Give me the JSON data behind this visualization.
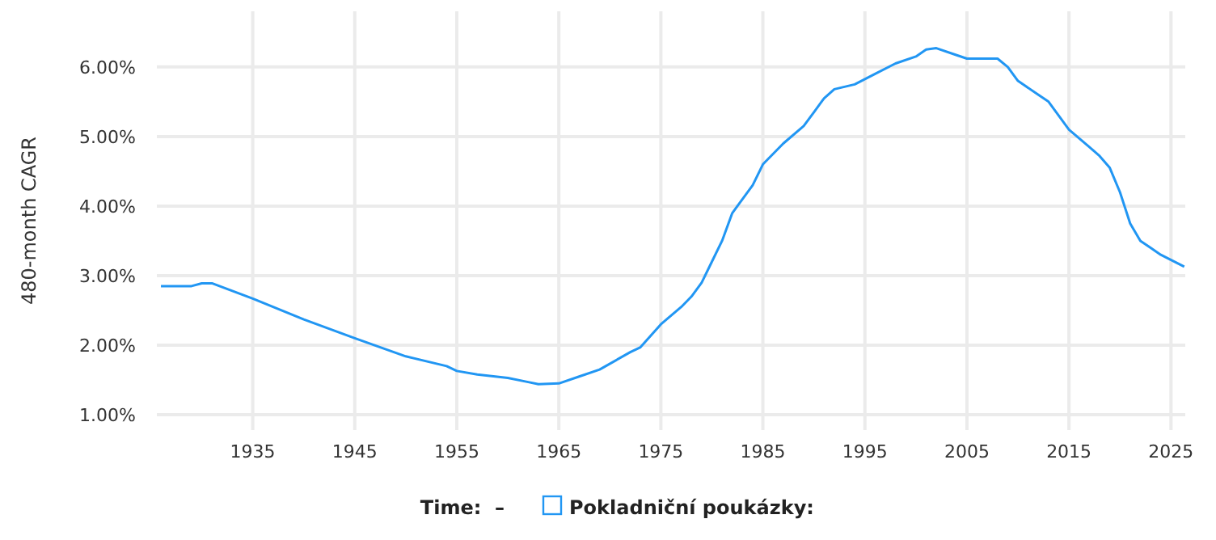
{
  "chart_data": {
    "type": "line",
    "ylabel": "480-month CAGR",
    "annotations": [
      "Time:  –"
    ],
    "xlim": [
      1925.6,
      2026.4
    ],
    "xticks": [
      1935,
      1945,
      1955,
      1965,
      1975,
      1985,
      1995,
      2005,
      2015,
      2025
    ],
    "ylim": [
      0.78,
      6.8
    ],
    "yticks": [
      {
        "value": 1,
        "label": "1.00%"
      },
      {
        "value": 2,
        "label": "2.00%"
      },
      {
        "value": 3,
        "label": "3.00%"
      },
      {
        "value": 4,
        "label": "4.00%"
      },
      {
        "value": 5,
        "label": "5.00%"
      },
      {
        "value": 6,
        "label": "6.00%"
      }
    ],
    "grid": true,
    "legend": "bottom",
    "marker": "none",
    "line_style": "solid",
    "series": [
      {
        "name": "Pokladniční poukázky:",
        "color": "#2196f3",
        "x": [
          1926,
          1929,
          1930,
          1931,
          1933,
          1935,
          1940,
          1945,
          1950,
          1954,
          1955,
          1957,
          1960,
          1962,
          1963,
          1965,
          1967,
          1969,
          1972,
          1973,
          1975,
          1977,
          1978,
          1979,
          1980,
          1981,
          1982,
          1984,
          1985,
          1987,
          1989,
          1990,
          1991,
          1992,
          1994,
          1996,
          1998,
          2000,
          2001,
          2002,
          2004,
          2005,
          2008,
          2009,
          2010,
          2012,
          2013,
          2015,
          2017,
          2018,
          2019,
          2020,
          2021,
          2022,
          2023,
          2024,
          2026.3
        ],
        "values": [
          2.85,
          2.85,
          2.89,
          2.89,
          2.78,
          2.67,
          2.37,
          2.1,
          1.84,
          1.7,
          1.63,
          1.58,
          1.53,
          1.47,
          1.44,
          1.45,
          1.55,
          1.65,
          1.9,
          1.97,
          2.3,
          2.55,
          2.7,
          2.9,
          3.2,
          3.5,
          3.9,
          4.3,
          4.6,
          4.9,
          5.15,
          5.35,
          5.55,
          5.68,
          5.75,
          5.9,
          6.05,
          6.15,
          6.25,
          6.27,
          6.17,
          6.12,
          6.12,
          6.0,
          5.8,
          5.6,
          5.5,
          5.1,
          4.85,
          4.72,
          4.55,
          4.2,
          3.75,
          3.5,
          3.4,
          3.3,
          3.13
        ]
      }
    ]
  }
}
